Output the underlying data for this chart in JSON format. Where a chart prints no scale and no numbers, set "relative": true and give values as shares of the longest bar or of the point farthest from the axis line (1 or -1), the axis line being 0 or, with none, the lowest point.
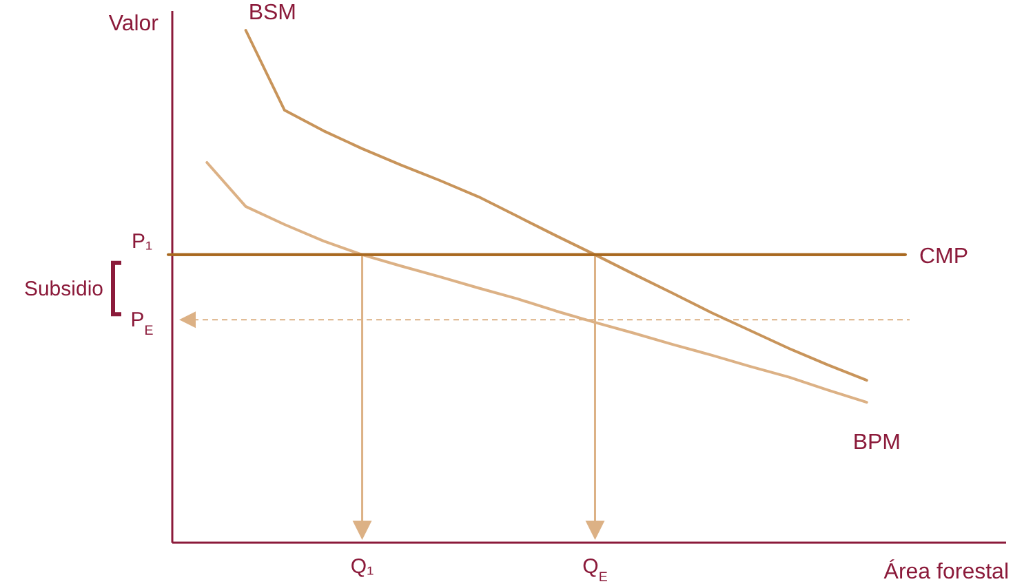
{
  "chart_data": {
    "type": "line",
    "relative": true,
    "ylabel": "Valor",
    "xlabel": "Área forestal",
    "tick_labels": "x",
    "legend": false,
    "marker": "none",
    "line_style": "solid",
    "categories": [
      null,
      null,
      null,
      null,
      null,
      "Q₁",
      null,
      null,
      null,
      null,
      null,
      "Q$_{E}$",
      null,
      null,
      null,
      null,
      null,
      null,
      null,
      null
    ],
    "series": [
      {
        "name": "BSM",
        "color": "#c8945a",
        "values": [
          null,
          null,
          1.0,
          0.844,
          0.804,
          0.769,
          0.737,
          0.707,
          0.675,
          0.637,
          0.599,
          0.562,
          0.524,
          0.487,
          0.449,
          0.414,
          0.379,
          0.347,
          0.317,
          null
        ]
      },
      {
        "name": "BPM",
        "color": "#dcb185",
        "values": [
          null,
          0.742,
          0.656,
          0.621,
          0.589,
          0.562,
          0.54,
          0.519,
          0.497,
          0.476,
          0.452,
          0.43,
          0.409,
          0.387,
          0.366,
          0.344,
          0.323,
          0.298,
          0.274,
          null
        ]
      },
      {
        "name": "CMP",
        "color": "#a8681f",
        "values": [
          0.562,
          0.562,
          0.562,
          0.562,
          0.562,
          0.562,
          0.562,
          0.562,
          0.562,
          0.562,
          0.562,
          0.562,
          0.562,
          0.562,
          0.562,
          0.562,
          0.562,
          0.562,
          0.562,
          0.562
        ]
      }
    ],
    "ref_lines": [
      {
        "axis": "y",
        "value": 0.562,
        "label": "P₁",
        "color": "#a8681f"
      },
      {
        "axis": "y",
        "value": 0.435,
        "label": "P$_{E}$",
        "color": "#dcb185",
        "line_style": "dashed"
      },
      {
        "axis": "x",
        "value": "Q₁",
        "color": "#dcb185"
      },
      {
        "axis": "x",
        "value": "Q$_{E}$",
        "color": "#dcb185"
      }
    ],
    "annotations": [
      "Subsidio"
    ]
  }
}
